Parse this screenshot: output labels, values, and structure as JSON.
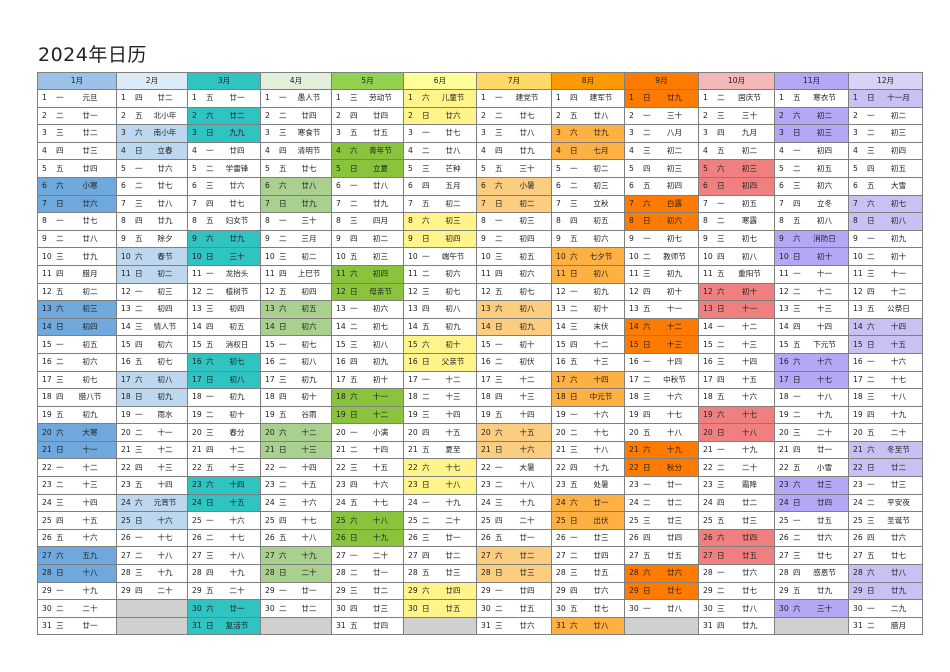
{
  "title": "2024年日历",
  "months": [
    {
      "name": "1月",
      "color": "#9bc2e6",
      "hl": "#6fa8dc",
      "startWeekday": 1,
      "labels": [
        "元旦",
        "廿一",
        "廿二",
        "廿三",
        "廿四",
        "小寒",
        "廿六",
        "廿七",
        "廿八",
        "廿九",
        "腊月",
        "初二",
        "初三",
        "初四",
        "初五",
        "初六",
        "初七",
        "腊八节",
        "初九",
        "大寒",
        "十一",
        "十二",
        "十三",
        "十四",
        "十五",
        "十六",
        "五九",
        "十八",
        "十九",
        "二十",
        "廿一"
      ]
    },
    {
      "name": "2月",
      "color": "#ddebf7",
      "hl": "#bdd7ee",
      "startWeekday": 4,
      "labels": [
        "廿二",
        "北小年",
        "南小年",
        "立春",
        "廿六",
        "廿七",
        "廿八",
        "廿九",
        "除夕",
        "春节",
        "初二",
        "初三",
        "初四",
        "情人节",
        "初六",
        "初七",
        "初八",
        "初九",
        "雨水",
        "十一",
        "十二",
        "十三",
        "十四",
        "元宵节",
        "十六",
        "十七",
        "十八",
        "十九",
        "二十"
      ]
    },
    {
      "name": "3月",
      "color": "#2fc3c1",
      "hl": "#2fc3c1",
      "startWeekday": 5,
      "labels": [
        "廿一",
        "廿二",
        "九九",
        "廿四",
        "学雷锋",
        "廿六",
        "廿七",
        "妇女节",
        "廿九",
        "三十",
        "龙抬头",
        "植树节",
        "初四",
        "初五",
        "消权日",
        "初七",
        "初八",
        "初九",
        "初十",
        "春分",
        "十二",
        "十三",
        "十四",
        "十五",
        "十六",
        "十七",
        "十八",
        "十九",
        "二十",
        "廿一",
        "复活节"
      ]
    },
    {
      "name": "4月",
      "color": "#e2efda",
      "hl": "#a9d08e",
      "startWeekday": 1,
      "labels": [
        "愚人节",
        "廿四",
        "寒食节",
        "清明节",
        "廿七",
        "廿八",
        "廿九",
        "三十",
        "三月",
        "初二",
        "上巳节",
        "初四",
        "初五",
        "初六",
        "初七",
        "初八",
        "初九",
        "初十",
        "谷雨",
        "十二",
        "十三",
        "十四",
        "十五",
        "十六",
        "十七",
        "十八",
        "十九",
        "二十",
        "廿一",
        "廿二"
      ]
    },
    {
      "name": "5月",
      "color": "#92d050",
      "hl": "#8ac43d",
      "startWeekday": 3,
      "labels": [
        "劳动节",
        "廿四",
        "廿五",
        "青年节",
        "立夏",
        "廿八",
        "廿九",
        "四月",
        "初二",
        "初三",
        "初四",
        "母亲节",
        "初六",
        "初七",
        "初八",
        "初九",
        "初十",
        "十一",
        "十二",
        "小满",
        "十四",
        "十五",
        "十六",
        "十七",
        "十八",
        "十九",
        "二十",
        "廿一",
        "廿二",
        "廿三",
        "廿四"
      ]
    },
    {
      "name": "6月",
      "color": "#ffff99",
      "hl": "#fff48a",
      "startWeekday": 6,
      "labels": [
        "儿童节",
        "廿六",
        "廿七",
        "廿八",
        "芒种",
        "五月",
        "初二",
        "初三",
        "初四",
        "端午节",
        "初六",
        "初七",
        "初八",
        "初九",
        "初十",
        "父亲节",
        "十二",
        "十三",
        "十四",
        "十五",
        "夏至",
        "十七",
        "十八",
        "十九",
        "二十",
        "廿一",
        "廿二",
        "廿三",
        "廿四",
        "廿五"
      ]
    },
    {
      "name": "7月",
      "color": "#ffd966",
      "hl": "#fbcd80",
      "startWeekday": 1,
      "labels": [
        "建党节",
        "廿七",
        "廿八",
        "廿九",
        "三十",
        "小暑",
        "初二",
        "初三",
        "初四",
        "初五",
        "初六",
        "初七",
        "初八",
        "初九",
        "初十",
        "初伏",
        "十二",
        "十三",
        "十四",
        "十五",
        "十六",
        "大暑",
        "十八",
        "十九",
        "二十",
        "廿一",
        "廿二",
        "廿三",
        "廿四",
        "廿五",
        "廿六"
      ]
    },
    {
      "name": "8月",
      "color": "#ff9900",
      "hl": "#ffb042",
      "startWeekday": 4,
      "labels": [
        "建军节",
        "廿八",
        "廿九",
        "七月",
        "初二",
        "初三",
        "立秋",
        "初五",
        "初六",
        "七夕节",
        "初八",
        "初九",
        "初十",
        "末伏",
        "十二",
        "十三",
        "十四",
        "中元节",
        "十六",
        "十七",
        "十八",
        "十九",
        "处暑",
        "廿一",
        "出伏",
        "廿三",
        "廿四",
        "廿五",
        "廿六",
        "廿七",
        "廿八"
      ]
    },
    {
      "name": "9月",
      "color": "#ff7a00",
      "hl": "#ff7a00",
      "startWeekday": 7,
      "labels": [
        "廿九",
        "三十",
        "八月",
        "初二",
        "初三",
        "初四",
        "白露",
        "初六",
        "初七",
        "教师节",
        "初九",
        "初十",
        "十一",
        "十二",
        "十三",
        "十四",
        "中秋节",
        "十六",
        "十七",
        "十八",
        "十九",
        "秋分",
        "廿一",
        "廿二",
        "廿三",
        "廿四",
        "廿五",
        "廿六",
        "廿七",
        "廿八"
      ]
    },
    {
      "name": "10月",
      "color": "#f4b7b7",
      "hl": "#f08080",
      "startWeekday": 2,
      "labels": [
        "国庆节",
        "三十",
        "九月",
        "初二",
        "初三",
        "初四",
        "初五",
        "寒露",
        "初七",
        "初八",
        "重阳节",
        "初十",
        "十一",
        "十二",
        "十三",
        "十四",
        "十五",
        "十六",
        "十七",
        "十八",
        "十九",
        "二十",
        "霜降",
        "廿二",
        "廿三",
        "廿四",
        "廿五",
        "廿六",
        "廿七",
        "廿八",
        "廿九"
      ]
    },
    {
      "name": "11月",
      "color": "#b4a7f5",
      "hl": "#b4a7f5",
      "startWeekday": 5,
      "labels": [
        "寒衣节",
        "初二",
        "初三",
        "初四",
        "初五",
        "初六",
        "立冬",
        "初八",
        "消防日",
        "初十",
        "十一",
        "十二",
        "十三",
        "十四",
        "下元节",
        "十六",
        "十七",
        "十八",
        "十九",
        "二十",
        "廿一",
        "小雪",
        "廿三",
        "廿四",
        "廿五",
        "廿六",
        "廿七",
        "感恩节",
        "廿九",
        "三十"
      ]
    },
    {
      "name": "12月",
      "color": "#d9d2f7",
      "hl": "#c9c0f3",
      "startWeekday": 7,
      "labels": [
        "十一月",
        "初二",
        "初三",
        "初四",
        "初五",
        "大雪",
        "初七",
        "初八",
        "初九",
        "初十",
        "十一",
        "十二",
        "公祭日",
        "十四",
        "十五",
        "十六",
        "十七",
        "十八",
        "十九",
        "二十",
        "冬至节",
        "廿二",
        "廿三",
        "平安夜",
        "圣诞节",
        "廿六",
        "廿七",
        "廿八",
        "廿九",
        "二九",
        "腊月"
      ]
    }
  ],
  "weekdays": [
    "一",
    "二",
    "三",
    "四",
    "五",
    "六",
    "日"
  ],
  "emptyColor": "#d0d0d0"
}
